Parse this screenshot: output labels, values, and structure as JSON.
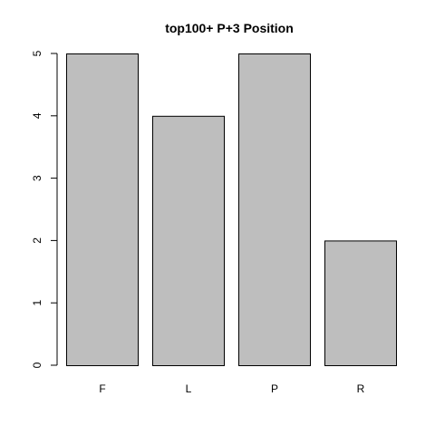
{
  "chart_data": {
    "type": "bar",
    "title": "top100+ P+3 Position",
    "xlabel": "",
    "ylabel": "",
    "categories": [
      "F",
      "L",
      "P",
      "R"
    ],
    "values": [
      5,
      4,
      5,
      2
    ],
    "yticks": [
      "0",
      "1",
      "2",
      "3",
      "4",
      "5"
    ],
    "ylim": [
      0,
      5
    ],
    "grid": false,
    "legend": "none",
    "bar_fill": "#bebebe",
    "bar_stroke": "#000000"
  }
}
